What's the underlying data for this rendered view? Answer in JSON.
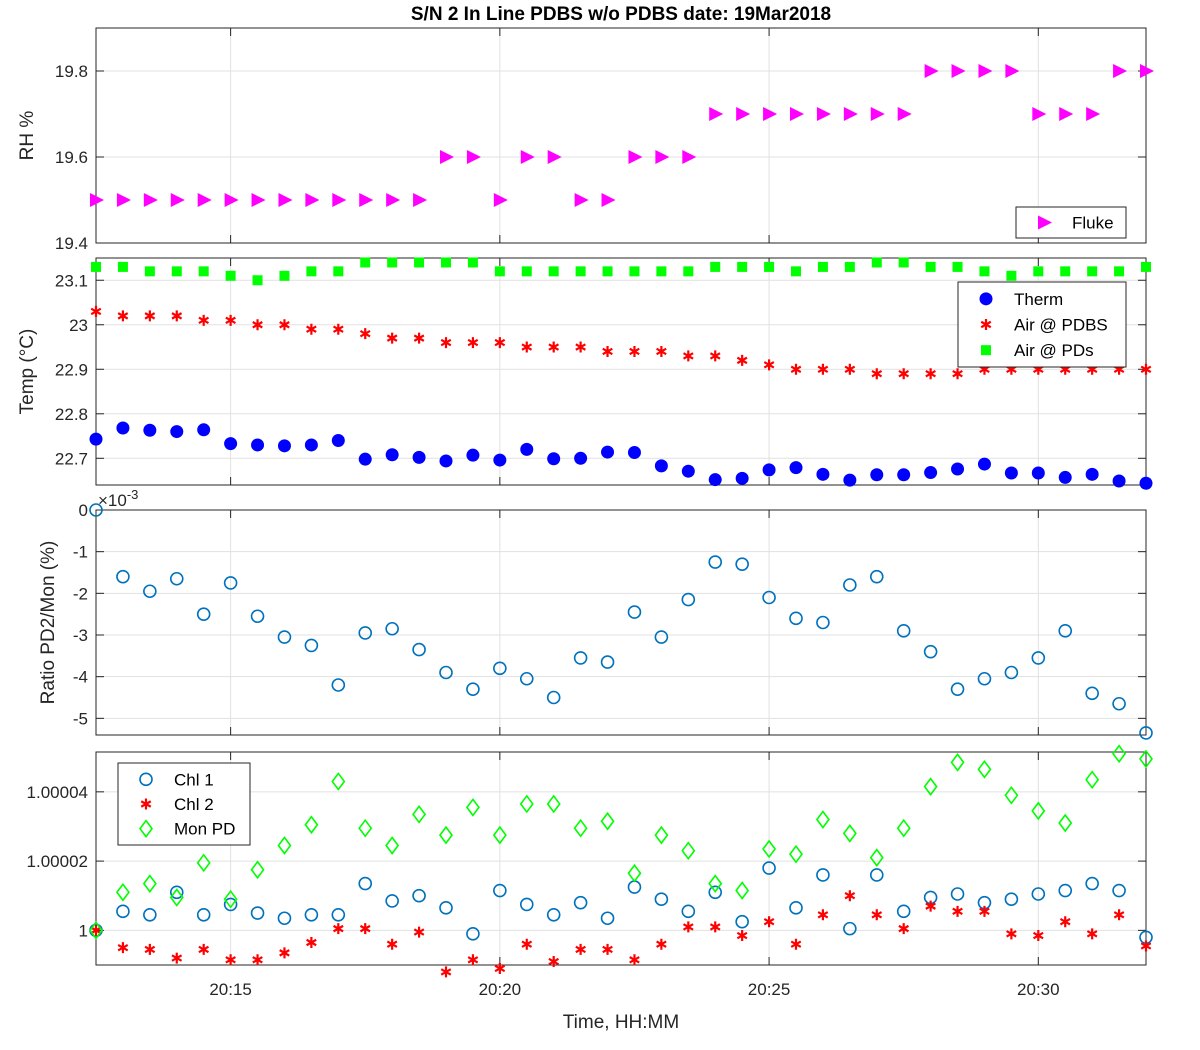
{
  "title": "S/N 2 In Line PDBS w/o PDBS date: 19Mar2018",
  "x_axis": {
    "label": "Time, HH:MM",
    "range": [
      "20:12:30",
      "20:32:00"
    ],
    "ticks": [
      "20:15",
      "20:20",
      "20:25",
      "20:30"
    ]
  },
  "colors": {
    "magenta": "#ff00ff",
    "blue": "#0000ff",
    "red": "#ff0000",
    "green": "#00ff00",
    "matlab_blue": "#0072bd"
  },
  "chart_data": [
    {
      "type": "scatter",
      "ylabel": "RH %",
      "ylim": [
        19.4,
        19.9
      ],
      "yticks": [
        19.4,
        19.6,
        19.8
      ],
      "grid": true,
      "legend": "bottom-right",
      "x": [
        "20:12:30",
        "20:13:00",
        "20:13:30",
        "20:14:00",
        "20:14:30",
        "20:15:00",
        "20:15:30",
        "20:16:00",
        "20:16:30",
        "20:17:00",
        "20:17:30",
        "20:18:00",
        "20:18:30",
        "20:19:00",
        "20:19:30",
        "20:20:00",
        "20:20:30",
        "20:21:00",
        "20:21:30",
        "20:22:00",
        "20:22:30",
        "20:23:00",
        "20:23:30",
        "20:24:00",
        "20:24:30",
        "20:25:00",
        "20:25:30",
        "20:26:00",
        "20:26:30",
        "20:27:00",
        "20:27:30",
        "20:28:00",
        "20:28:30",
        "20:29:00",
        "20:29:30",
        "20:30:00",
        "20:30:30",
        "20:31:00",
        "20:31:30",
        "20:32:00"
      ],
      "series": [
        {
          "name": "Fluke",
          "marker": "triangle-right",
          "color": "#ff00ff",
          "values": [
            19.5,
            19.5,
            19.5,
            19.5,
            19.5,
            19.5,
            19.5,
            19.5,
            19.5,
            19.5,
            19.5,
            19.5,
            19.5,
            19.6,
            19.6,
            19.5,
            19.6,
            19.6,
            19.5,
            19.5,
            19.6,
            19.6,
            19.6,
            19.7,
            19.7,
            19.7,
            19.7,
            19.7,
            19.7,
            19.7,
            19.7,
            19.8,
            19.8,
            19.8,
            19.8,
            19.7,
            19.7,
            19.7,
            19.8,
            19.8
          ]
        }
      ]
    },
    {
      "type": "scatter",
      "ylabel": "Temp (°C)",
      "ylim": [
        22.64,
        23.15
      ],
      "yticks": [
        22.7,
        22.8,
        22.9,
        23,
        23.1
      ],
      "ytick_labels": [
        "22.7",
        "22.8",
        "22.9",
        "23",
        "23.1"
      ],
      "grid": true,
      "legend": "top-right",
      "x": [
        "20:12:30",
        "20:13:00",
        "20:13:30",
        "20:14:00",
        "20:14:30",
        "20:15:00",
        "20:15:30",
        "20:16:00",
        "20:16:30",
        "20:17:00",
        "20:17:30",
        "20:18:00",
        "20:18:30",
        "20:19:00",
        "20:19:30",
        "20:20:00",
        "20:20:30",
        "20:21:00",
        "20:21:30",
        "20:22:00",
        "20:22:30",
        "20:23:00",
        "20:23:30",
        "20:24:00",
        "20:24:30",
        "20:25:00",
        "20:25:30",
        "20:26:00",
        "20:26:30",
        "20:27:00",
        "20:27:30",
        "20:28:00",
        "20:28:30",
        "20:29:00",
        "20:29:30",
        "20:30:00",
        "20:30:30",
        "20:31:00",
        "20:31:30",
        "20:32:00"
      ],
      "series": [
        {
          "name": "Therm",
          "marker": "filled-circle",
          "color": "#0000ff",
          "values": [
            22.743,
            22.768,
            22.763,
            22.76,
            22.764,
            22.733,
            22.73,
            22.728,
            22.73,
            22.74,
            22.698,
            22.708,
            22.702,
            22.694,
            22.707,
            22.696,
            22.72,
            22.699,
            22.7,
            22.714,
            22.713,
            22.683,
            22.671,
            22.652,
            22.655,
            22.674,
            22.679,
            22.664,
            22.651,
            22.663,
            22.663,
            22.668,
            22.676,
            22.687,
            22.667,
            22.667,
            22.657,
            22.664,
            22.649,
            22.644
          ]
        },
        {
          "name": "Air @ PDBS",
          "marker": "asterisk",
          "color": "#ff0000",
          "values": [
            23.03,
            23.02,
            23.02,
            23.02,
            23.01,
            23.01,
            23.0,
            23.0,
            22.99,
            22.99,
            22.98,
            22.97,
            22.97,
            22.96,
            22.96,
            22.96,
            22.95,
            22.95,
            22.95,
            22.94,
            22.94,
            22.94,
            22.93,
            22.93,
            22.92,
            22.91,
            22.9,
            22.9,
            22.9,
            22.89,
            22.89,
            22.89,
            22.89,
            22.9,
            22.9,
            22.9,
            22.9,
            22.9,
            22.9,
            22.9
          ]
        },
        {
          "name": "Air @ PDs",
          "marker": "filled-square",
          "color": "#00ff00",
          "values": [
            23.13,
            23.13,
            23.12,
            23.12,
            23.12,
            23.11,
            23.1,
            23.11,
            23.12,
            23.12,
            23.14,
            23.14,
            23.14,
            23.14,
            23.14,
            23.12,
            23.12,
            23.12,
            23.12,
            23.12,
            23.12,
            23.12,
            23.12,
            23.13,
            23.13,
            23.13,
            23.12,
            23.13,
            23.13,
            23.14,
            23.14,
            23.13,
            23.13,
            23.12,
            23.11,
            23.12,
            23.12,
            23.12,
            23.12,
            23.13
          ]
        }
      ]
    },
    {
      "type": "scatter",
      "ylabel": "Ratio PD2/Mon (%)",
      "y_multiplier": "×10",
      "y_multiplier_exponent": "-3",
      "ylim": [
        -5.4,
        0
      ],
      "yticks": [
        0,
        -1,
        -2,
        -3,
        -4,
        -5
      ],
      "grid": true,
      "x": [
        "20:12:30",
        "20:13:00",
        "20:13:30",
        "20:14:00",
        "20:14:30",
        "20:15:00",
        "20:15:30",
        "20:16:00",
        "20:16:30",
        "20:17:00",
        "20:17:30",
        "20:18:00",
        "20:18:30",
        "20:19:00",
        "20:19:30",
        "20:20:00",
        "20:20:30",
        "20:21:00",
        "20:21:30",
        "20:22:00",
        "20:22:30",
        "20:23:00",
        "20:23:30",
        "20:24:00",
        "20:24:30",
        "20:25:00",
        "20:25:30",
        "20:26:00",
        "20:26:30",
        "20:27:00",
        "20:27:30",
        "20:28:00",
        "20:28:30",
        "20:29:00",
        "20:29:30",
        "20:30:00",
        "20:30:30",
        "20:31:00",
        "20:31:30",
        "20:32:00"
      ],
      "series": [
        {
          "marker": "open-circle",
          "color": "#0072bd",
          "values": [
            0,
            -1.6,
            -1.95,
            -1.65,
            -2.5,
            -1.75,
            -2.55,
            -3.05,
            -3.25,
            -4.2,
            -2.95,
            -2.85,
            -3.35,
            -3.9,
            -4.3,
            -3.8,
            -4.05,
            -4.5,
            -3.55,
            -3.65,
            -2.45,
            -3.05,
            -2.15,
            -1.25,
            -1.3,
            -2.1,
            -2.6,
            -2.7,
            -1.8,
            -1.6,
            -2.9,
            -3.4,
            -4.3,
            -4.05,
            -3.9,
            -3.55,
            -2.9,
            -4.4,
            -4.65,
            -5.35
          ]
        }
      ]
    },
    {
      "type": "scatter",
      "ylim": [
        0.99999,
        1.0000515
      ],
      "yticks": [
        1,
        1.00002,
        1.00004
      ],
      "ytick_labels": [
        "1",
        "1.00002",
        "1.00004"
      ],
      "grid": true,
      "legend": "top-left",
      "x": [
        "20:12:30",
        "20:13:00",
        "20:13:30",
        "20:14:00",
        "20:14:30",
        "20:15:00",
        "20:15:30",
        "20:16:00",
        "20:16:30",
        "20:17:00",
        "20:17:30",
        "20:18:00",
        "20:18:30",
        "20:19:00",
        "20:19:30",
        "20:20:00",
        "20:20:30",
        "20:21:00",
        "20:21:30",
        "20:22:00",
        "20:22:30",
        "20:23:00",
        "20:23:30",
        "20:24:00",
        "20:24:30",
        "20:25:00",
        "20:25:30",
        "20:26:00",
        "20:26:30",
        "20:27:00",
        "20:27:30",
        "20:28:00",
        "20:28:30",
        "20:29:00",
        "20:29:30",
        "20:30:00",
        "20:30:30",
        "20:31:00",
        "20:31:30",
        "20:32:00"
      ],
      "series": [
        {
          "name": "Chl 1",
          "marker": "open-circle",
          "color": "#0072bd",
          "values": [
            1.0,
            1.0000055,
            1.0000045,
            1.000011,
            1.0000045,
            1.0000075,
            1.000005,
            1.0000035,
            1.0000045,
            1.0000045,
            1.0000135,
            1.0000085,
            1.00001,
            1.0000065,
            0.999999,
            1.0000115,
            1.0000075,
            1.0000045,
            1.000008,
            1.0000035,
            1.0000125,
            1.000009,
            1.0000055,
            1.000011,
            1.0000025,
            1.000018,
            1.0000065,
            1.000016,
            1.0000005,
            1.000016,
            1.0000055,
            1.0000095,
            1.0000105,
            1.000008,
            1.000009,
            1.0000105,
            1.0000115,
            1.0000135,
            1.0000115,
            0.999998
          ]
        },
        {
          "name": "Chl 2",
          "marker": "asterisk",
          "color": "#ff0000",
          "values": [
            1.0,
            0.999995,
            0.9999945,
            0.999992,
            0.9999945,
            0.9999915,
            0.9999915,
            0.9999935,
            0.9999965,
            1.0000005,
            1.0000005,
            0.999996,
            0.9999995,
            0.999988,
            0.9999915,
            0.999989,
            0.999996,
            0.999991,
            0.9999945,
            0.9999945,
            0.9999915,
            0.999996,
            1.000001,
            1.000001,
            0.9999985,
            1.0000025,
            0.999996,
            1.0000045,
            1.00001,
            1.0000045,
            1.0000005,
            1.000007,
            1.0000055,
            1.0000055,
            0.999999,
            0.9999985,
            1.0000025,
            0.999999,
            1.0000045,
            0.9999955
          ]
        },
        {
          "name": "Mon PD",
          "marker": "open-diamond",
          "color": "#00ff00",
          "values": [
            1.0,
            1.000011,
            1.0000135,
            1.0000095,
            1.0000195,
            1.000009,
            1.0000175,
            1.0000245,
            1.0000305,
            1.000043,
            1.0000295,
            1.0000245,
            1.0000335,
            1.0000275,
            1.0000355,
            1.0000275,
            1.0000365,
            1.0000365,
            1.0000295,
            1.0000315,
            1.0000165,
            1.0000275,
            1.000023,
            1.0000135,
            1.0000115,
            1.0000235,
            1.000022,
            1.000032,
            1.000028,
            1.000021,
            1.0000295,
            1.0000415,
            1.0000485,
            1.0000465,
            1.000039,
            1.0000345,
            1.000031,
            1.0000435,
            1.000051,
            1.0000495
          ]
        }
      ]
    }
  ]
}
